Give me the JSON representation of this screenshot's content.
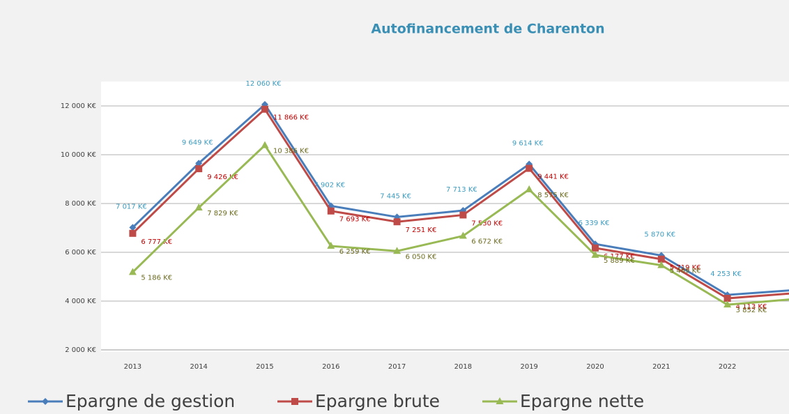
{
  "chart_data": {
    "type": "line",
    "title": "Autofinancement de Charenton",
    "categories": [
      "2013",
      "2014",
      "2015",
      "2016",
      "2017",
      "2018",
      "2019",
      "2020",
      "2021",
      "2022",
      null
    ],
    "series": [
      {
        "name": "Epargne de gestion",
        "color": "#4a7ebb",
        "marker": "diamond",
        "values": [
          7017,
          9649,
          12060,
          7902,
          7445,
          7713,
          9614,
          6339,
          5870,
          4253,
          4450
        ],
        "value_labels": [
          "7 017 K€",
          "9 649 K€",
          "12 060 K€",
          "7 902 K€",
          "7 445 K€",
          "7 713 K€",
          "9 614 K€",
          "6 339 K€",
          "5 870 K€",
          "4 253 K€",
          null
        ]
      },
      {
        "name": "Epargne brute",
        "color": "#be4b48",
        "marker": "square",
        "values": [
          6777,
          9426,
          11866,
          7693,
          7251,
          7530,
          9441,
          6177,
          5719,
          4113,
          4320
        ],
        "value_labels": [
          "6 777 K€",
          "9 426 K€",
          "11 866 K€",
          "7 693 K€",
          "7 251 K€",
          "7 530 K€",
          "9 441 K€",
          "6 177 K€",
          "5 719 K€",
          "4 113 K€",
          null
        ]
      },
      {
        "name": "Epargne nette",
        "color": "#98b954",
        "marker": "triangle",
        "values": [
          5186,
          7829,
          10386,
          6259,
          6050,
          6672,
          8575,
          5889,
          5469,
          3852,
          4080
        ],
        "value_labels": [
          "5 186 K€",
          "7 829 K€",
          "10 386 K€",
          "6 259 K€",
          "6 050 K€",
          "6 672 K€",
          "8 575 K€",
          "5 889 K€",
          "5 469 K€",
          "3 852 K€",
          null
        ]
      }
    ],
    "ylim": [
      2000,
      13000
    ],
    "yticks": [
      {
        "value": 2000,
        "label": "2 000 K€"
      },
      {
        "value": 4000,
        "label": "4 000 K€"
      },
      {
        "value": 6000,
        "label": "6 000 K€"
      },
      {
        "value": 8000,
        "label": "8 000 K€"
      },
      {
        "value": 10000,
        "label": "10 000 K€"
      },
      {
        "value": 12000,
        "label": "12 000 K€"
      }
    ],
    "grid": true,
    "legend": "bottom"
  }
}
